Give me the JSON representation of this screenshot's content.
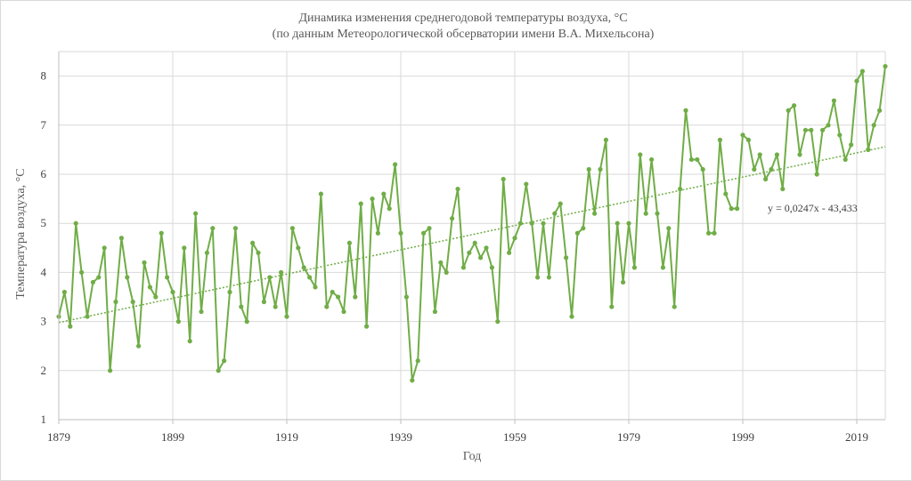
{
  "chart_data": {
    "type": "line",
    "title": "Динамика изменения среднегодовой температуры воздуха, °С",
    "subtitle": "(по данным Метеорологической обсерватории имени В.А. Михельсона)",
    "xlabel": "Год",
    "ylabel": "Температура воздуха, °С",
    "xlim": [
      1879,
      2024
    ],
    "ylim": [
      1,
      8.5
    ],
    "x_ticks": [
      1879,
      1899,
      1919,
      1939,
      1959,
      1979,
      1999,
      2019
    ],
    "y_ticks": [
      1,
      2,
      3,
      4,
      5,
      6,
      7,
      8
    ],
    "grid": true,
    "colors": {
      "series": "#70ad47",
      "grid": "#d9d9d9",
      "axis": "#bfbfbf"
    },
    "trendline": {
      "equation": "y = 0,0247x - 43,433",
      "slope": 0.0247,
      "intercept": -43.433
    },
    "series": [
      {
        "start_year": 1879,
        "values": [
          3.1,
          3.6,
          2.9,
          5.0,
          4.0,
          3.1,
          3.8,
          3.9,
          4.5,
          2.0,
          3.4,
          4.7,
          3.9,
          3.4,
          2.5,
          4.2,
          3.7,
          3.5,
          4.8,
          3.9,
          3.6,
          3.0,
          4.5,
          2.6,
          5.2,
          3.2,
          4.4,
          4.9,
          2.0,
          2.2,
          3.6,
          4.9,
          3.3,
          3.0,
          4.6,
          4.4,
          3.4,
          3.9,
          3.3,
          4.0,
          3.1,
          4.9,
          4.5,
          4.1,
          3.9,
          3.7,
          5.6,
          3.3,
          3.6,
          3.5,
          3.2,
          4.6,
          3.5,
          5.4,
          2.9,
          5.5,
          4.8,
          5.6,
          5.3,
          6.2,
          4.8,
          3.5,
          1.8,
          2.2,
          4.8,
          4.9,
          3.2,
          4.2,
          4.0,
          5.1,
          5.7,
          4.1,
          4.4,
          4.6,
          4.3,
          4.5,
          4.1,
          3.0,
          5.9,
          4.4,
          4.7,
          5.0,
          5.8,
          5.0,
          3.9,
          5.0,
          3.9,
          5.2,
          5.4,
          4.3,
          3.1,
          4.8,
          4.9,
          6.1,
          5.2,
          6.1,
          6.7,
          3.3,
          5.0,
          3.8,
          5.0,
          4.1,
          6.4,
          5.2,
          6.3,
          5.2,
          4.1,
          4.9,
          3.3,
          5.7,
          7.3,
          6.3,
          6.3,
          6.1,
          4.8,
          4.8,
          6.7,
          5.6,
          5.3,
          5.3,
          6.8,
          6.7,
          6.1,
          6.4,
          5.9,
          6.1,
          6.4,
          5.7,
          7.3,
          7.4,
          6.4,
          6.9,
          6.9,
          6.0,
          6.9,
          7.0,
          7.5,
          6.8,
          6.3,
          6.6,
          7.9,
          8.1,
          6.5,
          7.0,
          7.3,
          8.2
        ]
      }
    ]
  }
}
